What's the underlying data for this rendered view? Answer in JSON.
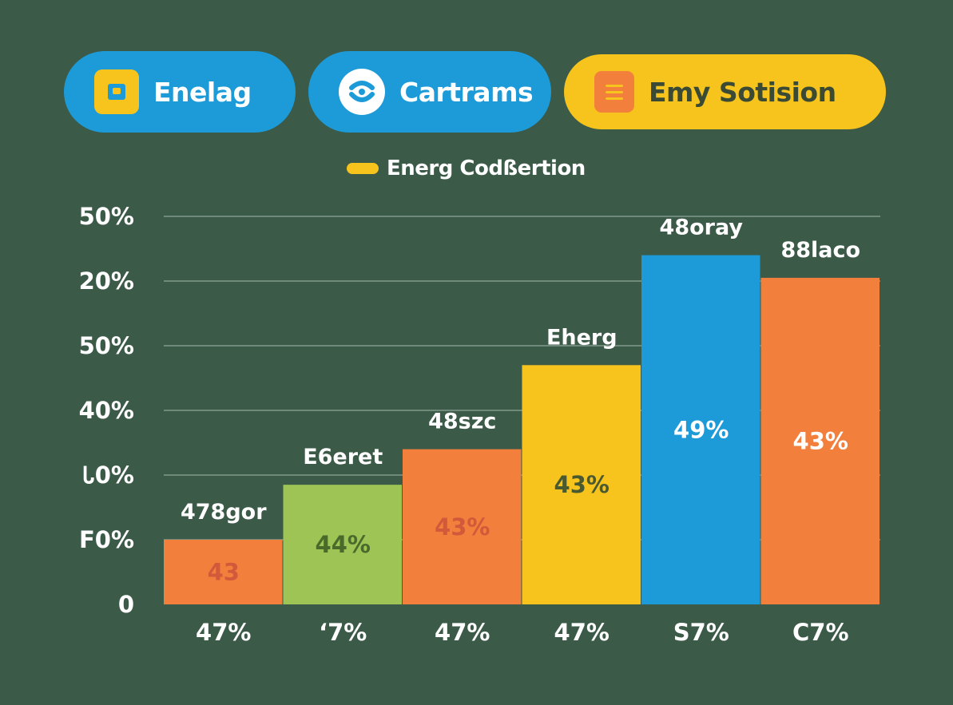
{
  "colors": {
    "background": "#3b5a48",
    "blue": "#1d9ad8",
    "yellow": "#f6c41c",
    "orange": "#f2803c",
    "green": "#9ec455",
    "grid": "#6f8a7a"
  },
  "header": {
    "pills": [
      {
        "label": "Enelag",
        "icon": "square-badge-icon",
        "bg": "#1d9ad8",
        "text_color": "#ffffff"
      },
      {
        "label": "Cartrams",
        "icon": "face-circle-icon",
        "bg": "#1d9ad8",
        "text_color": "#ffffff"
      },
      {
        "label": "Emy Sotision",
        "icon": "list-document-icon",
        "bg": "#f6c41c",
        "text_color": "#3b4a34"
      }
    ]
  },
  "legend": {
    "label": "Energ Codßertion",
    "color": "#f6c41c",
    "placement": "top-center"
  },
  "chart_data": {
    "type": "bar",
    "y_tick_labels": [
      "0",
      "F0%",
      "Ꮣ0%",
      "40%",
      "50%",
      "20%",
      "50%"
    ],
    "grid": true,
    "categories": [
      "47%",
      "ʻ7%",
      "47%",
      "47%",
      "S7%",
      "C7%"
    ],
    "values": [
      1.0,
      1.85,
      2.4,
      3.7,
      5.4,
      5.05
    ],
    "top_labels": [
      "478gor",
      "E6eret",
      "48szc",
      "Eherg",
      "48oray",
      "88laco"
    ],
    "inner_labels": [
      "43",
      "44%",
      "43%",
      "43%",
      "49%",
      "43%"
    ],
    "bar_colors": [
      "#f2803c",
      "#9ec455",
      "#f2803c",
      "#f6c41c",
      "#1d9ad8",
      "#f2803c"
    ],
    "inner_label_colors": [
      "#d2593a",
      "#4a6a2c",
      "#d2593a",
      "#4a5a30",
      "#ffffff",
      "#ffffff"
    ],
    "ylim": [
      0,
      6
    ]
  }
}
